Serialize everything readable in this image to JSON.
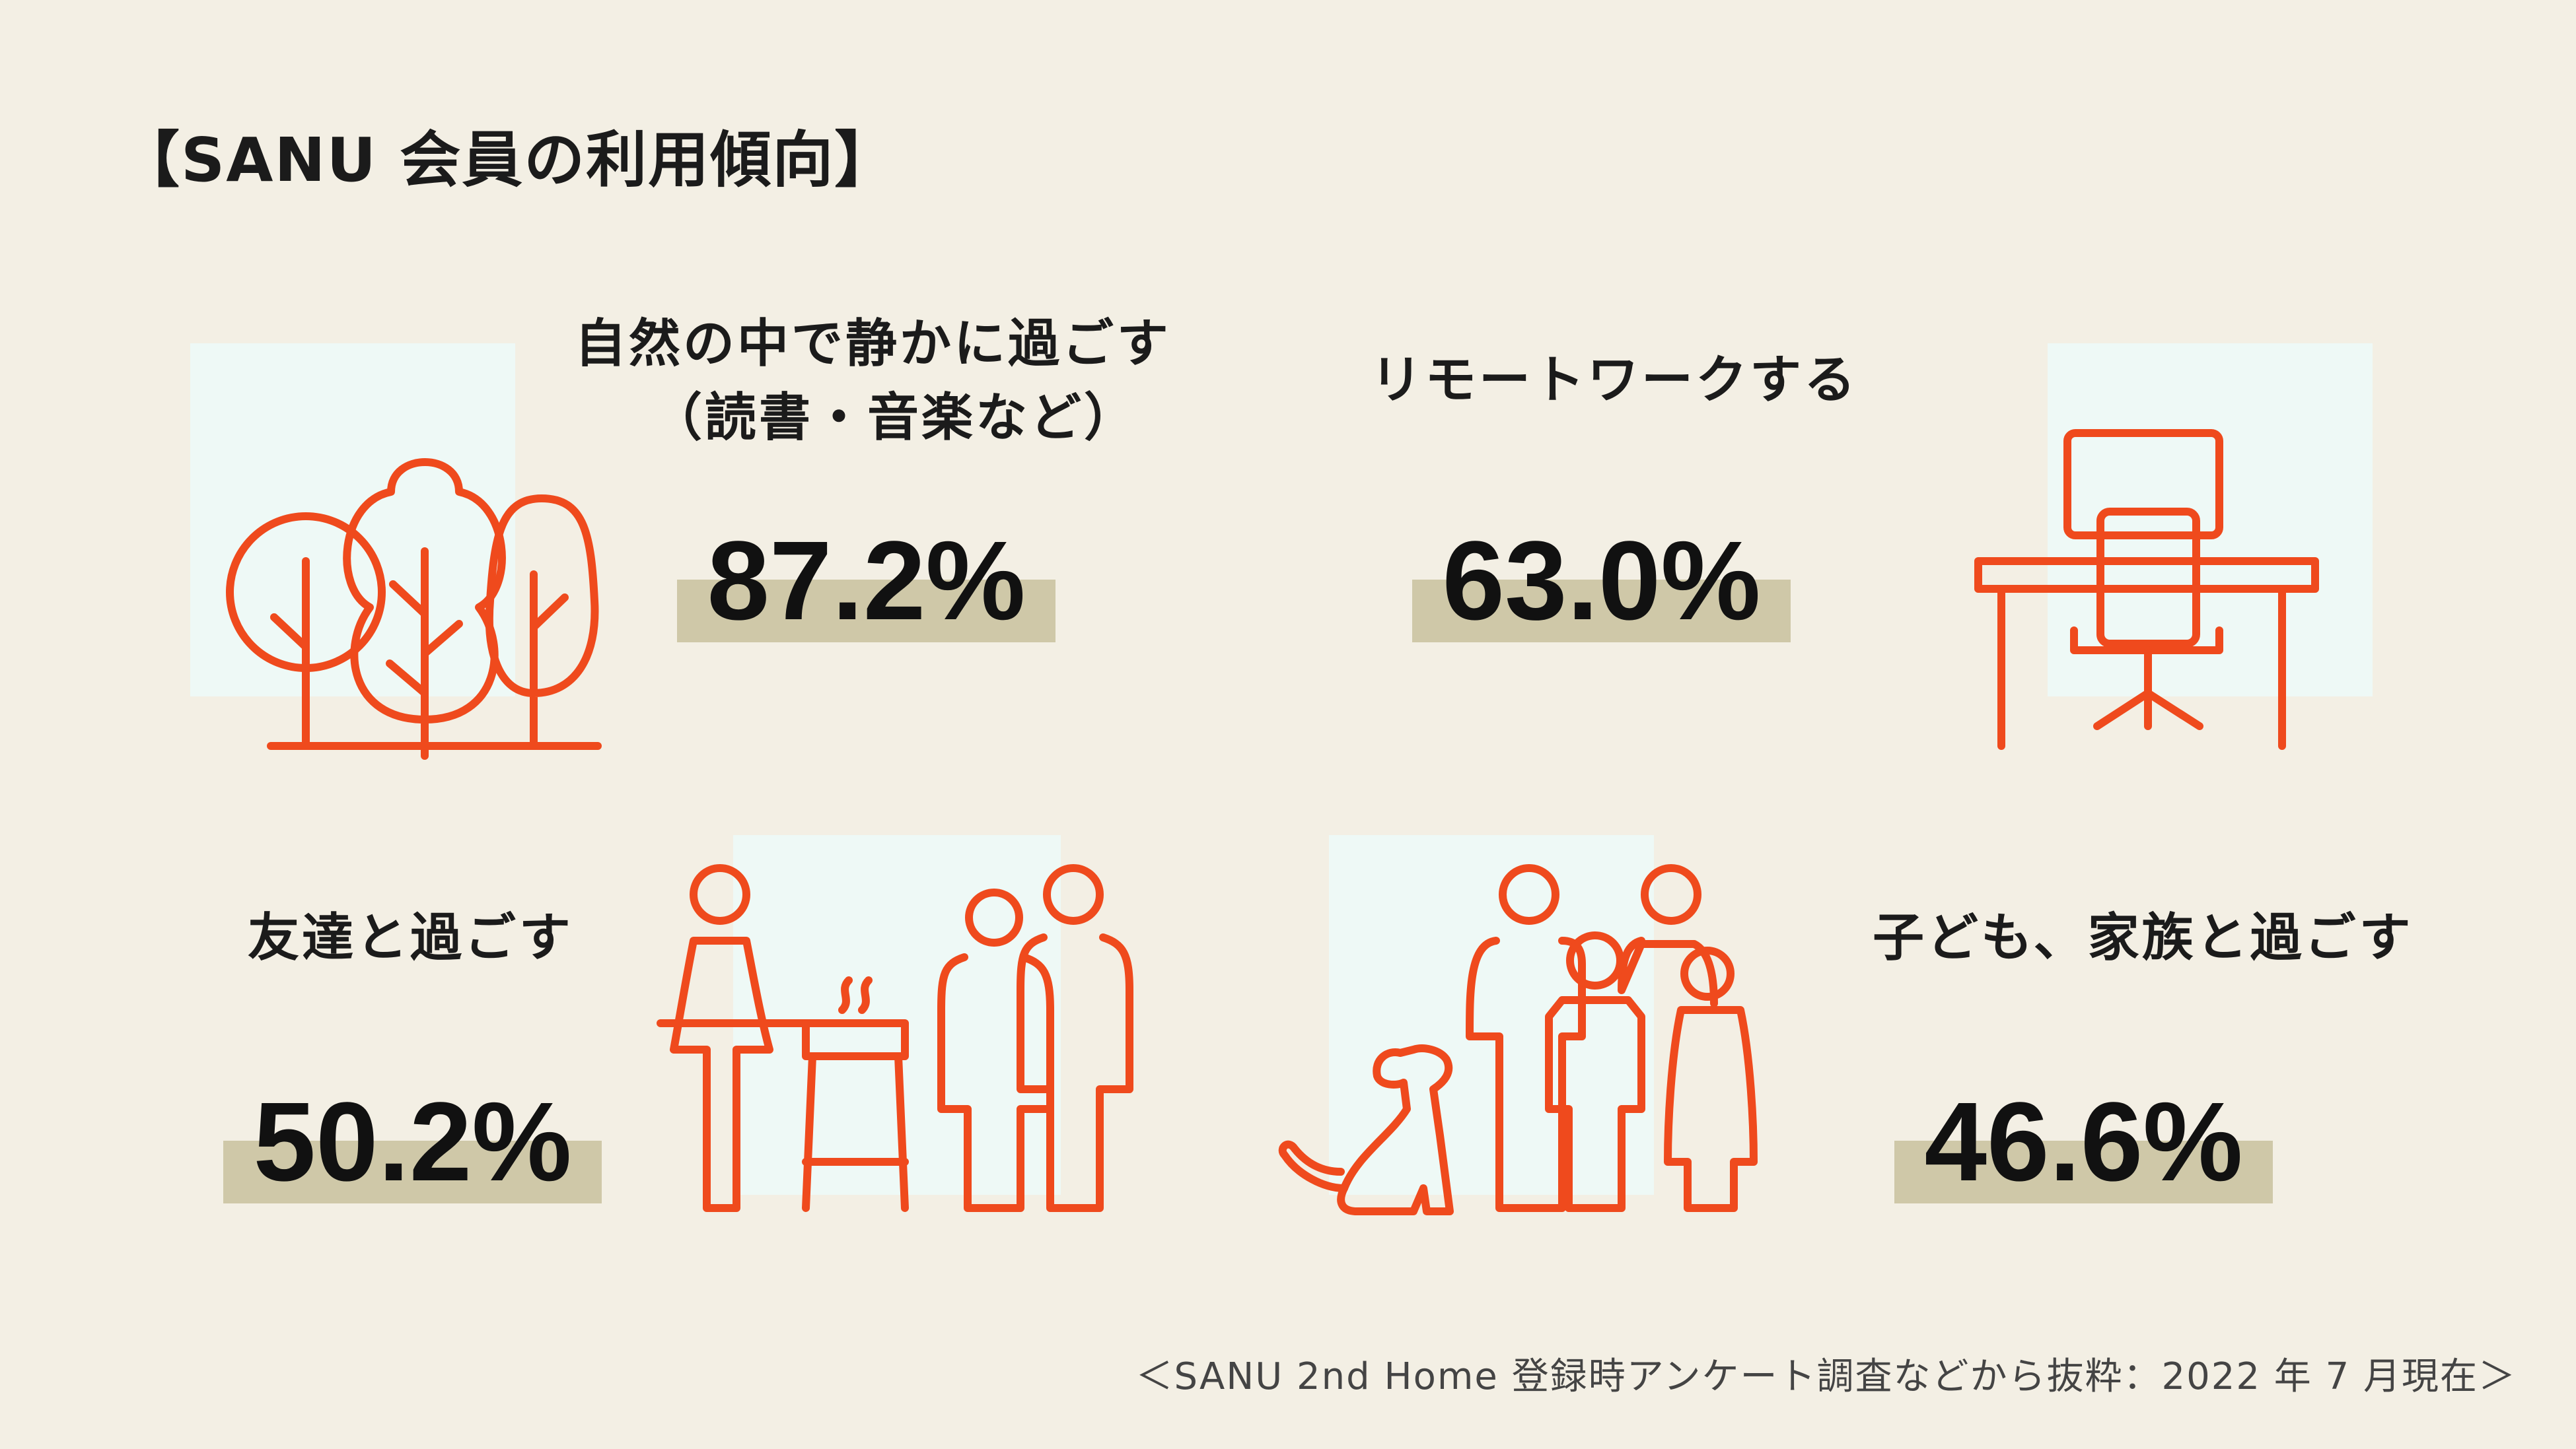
{
  "title": "【SANU 会員の利用傾向】",
  "items": [
    {
      "label_lines": [
        "自然の中で静かに過ごす",
        "（読書・音楽など）"
      ],
      "value": "87.2%",
      "icon": "trees-icon"
    },
    {
      "label_lines": [
        "リモートワークする"
      ],
      "value": "63.0%",
      "icon": "desk-chair-icon"
    },
    {
      "label_lines": [
        "友達と過ごす"
      ],
      "value": "50.2%",
      "icon": "friends-bbq-icon"
    },
    {
      "label_lines": [
        "子ども、家族と過ごす"
      ],
      "value": "46.6%",
      "icon": "family-dog-icon"
    }
  ],
  "footer": "＜SANU 2nd Home 登録時アンケート調査などから抜粋：2022 年 7 月現在＞",
  "colors": {
    "background": "#f3efe4",
    "accent": "#ef4a1d",
    "band": "#cfc8a8",
    "panel": "#eef9f6"
  }
}
